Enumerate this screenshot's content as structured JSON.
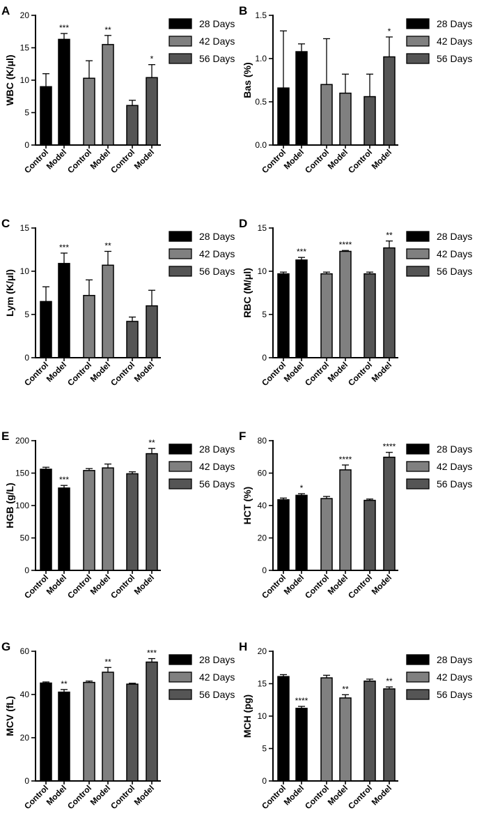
{
  "legend": {
    "items": [
      {
        "label": "28 Days",
        "color": "#000000"
      },
      {
        "label": "42 Days",
        "color": "#808080"
      },
      {
        "label": "56 Days",
        "color": "#555555"
      }
    ]
  },
  "chart_data": [
    {
      "panel": "A",
      "type": "bar",
      "ylabel": "WBC (K/μl)",
      "ylim": [
        0,
        20
      ],
      "yticks": [
        0,
        5,
        10,
        15,
        20
      ],
      "ytick_labels": [
        "0",
        "5",
        "10",
        "15",
        "20"
      ],
      "categories": [
        "Control",
        "Model",
        "Control",
        "Model",
        "Control",
        "Model"
      ],
      "groups": [
        "28 Days",
        "28 Days",
        "42 Days",
        "42 Days",
        "56 Days",
        "56 Days"
      ],
      "values": [
        9.0,
        16.3,
        10.3,
        15.5,
        6.1,
        10.4
      ],
      "errors": [
        2.0,
        0.9,
        2.7,
        1.4,
        0.8,
        2.0
      ],
      "annotations": [
        "",
        "***",
        "",
        "**",
        "",
        "*"
      ]
    },
    {
      "panel": "B",
      "type": "bar",
      "ylabel": "Bas (%)",
      "ylim": [
        0,
        1.5
      ],
      "yticks": [
        0,
        0.5,
        1.0,
        1.5
      ],
      "ytick_labels": [
        "0.0",
        "0.5",
        "1.0",
        "1.5"
      ],
      "categories": [
        "Control",
        "Model",
        "Control",
        "Model",
        "Control",
        "Model"
      ],
      "groups": [
        "28 Days",
        "28 Days",
        "42 Days",
        "42 Days",
        "56 Days",
        "56 Days"
      ],
      "values": [
        0.66,
        1.08,
        0.7,
        0.6,
        0.56,
        1.02
      ],
      "errors": [
        0.66,
        0.09,
        0.53,
        0.22,
        0.26,
        0.23
      ],
      "annotations": [
        "",
        "",
        "",
        "",
        "",
        "*"
      ]
    },
    {
      "panel": "C",
      "type": "bar",
      "ylabel": "Lym (K/μl)",
      "ylim": [
        0,
        15
      ],
      "yticks": [
        0,
        5,
        10,
        15
      ],
      "ytick_labels": [
        "0",
        "5",
        "10",
        "15"
      ],
      "categories": [
        "Control",
        "Model",
        "Control",
        "Model",
        "Control",
        "Model"
      ],
      "groups": [
        "28 Days",
        "28 Days",
        "42 Days",
        "42 Days",
        "56 Days",
        "56 Days"
      ],
      "values": [
        6.5,
        10.9,
        7.2,
        10.7,
        4.2,
        6.0
      ],
      "errors": [
        1.7,
        1.2,
        1.8,
        1.6,
        0.5,
        1.8
      ],
      "annotations": [
        "",
        "***",
        "",
        "**",
        "",
        ""
      ]
    },
    {
      "panel": "D",
      "type": "bar",
      "ylabel": "RBC (M/μl)",
      "ylim": [
        0,
        15
      ],
      "yticks": [
        0,
        5,
        10,
        15
      ],
      "ytick_labels": [
        "0",
        "5",
        "10",
        "15"
      ],
      "categories": [
        "Control",
        "Model",
        "Control",
        "Model",
        "Control",
        "Model"
      ],
      "groups": [
        "28 Days",
        "28 Days",
        "42 Days",
        "42 Days",
        "56 Days",
        "56 Days"
      ],
      "values": [
        9.7,
        11.3,
        9.7,
        12.3,
        9.7,
        12.7
      ],
      "errors": [
        0.2,
        0.3,
        0.2,
        0.1,
        0.2,
        0.8
      ],
      "annotations": [
        "",
        "***",
        "",
        "****",
        "",
        "**"
      ]
    },
    {
      "panel": "E",
      "type": "bar",
      "ylabel": "HGB (g/L)",
      "ylim": [
        0,
        200
      ],
      "yticks": [
        0,
        50,
        100,
        150,
        200
      ],
      "ytick_labels": [
        "0",
        "50",
        "100",
        "150",
        "200"
      ],
      "categories": [
        "Control",
        "Model",
        "Control",
        "Model",
        "Control",
        "Model"
      ],
      "groups": [
        "28 Days",
        "28 Days",
        "42 Days",
        "42 Days",
        "56 Days",
        "56 Days"
      ],
      "values": [
        156,
        127,
        154,
        158,
        149,
        180
      ],
      "errors": [
        3,
        4,
        3,
        6,
        3,
        8
      ],
      "annotations": [
        "",
        "***",
        "",
        "",
        "",
        "**"
      ]
    },
    {
      "panel": "F",
      "type": "bar",
      "ylabel": "HCT (%)",
      "ylim": [
        0,
        80
      ],
      "yticks": [
        0,
        20,
        40,
        60,
        80
      ],
      "ytick_labels": [
        "0",
        "20",
        "40",
        "60",
        "80"
      ],
      "categories": [
        "Control",
        "Model",
        "Control",
        "Model",
        "Control",
        "Model"
      ],
      "groups": [
        "28 Days",
        "28 Days",
        "42 Days",
        "42 Days",
        "56 Days",
        "56 Days"
      ],
      "values": [
        43.6,
        46.3,
        44.3,
        62.0,
        43.2,
        69.8
      ],
      "errors": [
        1.0,
        1.0,
        1.3,
        3.0,
        0.8,
        3.0
      ],
      "annotations": [
        "",
        "*",
        "",
        "****",
        "",
        "****"
      ]
    },
    {
      "panel": "G",
      "type": "bar",
      "ylabel": "MCV (fL)",
      "ylim": [
        0,
        60
      ],
      "yticks": [
        0,
        20,
        40,
        60
      ],
      "ytick_labels": [
        "0",
        "20",
        "40",
        "60"
      ],
      "categories": [
        "Control",
        "Model",
        "Control",
        "Model",
        "Control",
        "Model"
      ],
      "groups": [
        "28 Days",
        "28 Days",
        "42 Days",
        "42 Days",
        "56 Days",
        "56 Days"
      ],
      "values": [
        45.3,
        41.1,
        45.6,
        50.3,
        44.8,
        55.0
      ],
      "errors": [
        0.5,
        1.2,
        0.6,
        2.2,
        0.4,
        1.6
      ],
      "annotations": [
        "",
        "**",
        "",
        "**",
        "",
        "***"
      ]
    },
    {
      "panel": "H",
      "type": "bar",
      "ylabel": "MCH (pg)",
      "ylim": [
        0,
        20
      ],
      "yticks": [
        0,
        5,
        10,
        15,
        20
      ],
      "ytick_labels": [
        "0",
        "5",
        "10",
        "15",
        "20"
      ],
      "categories": [
        "Control",
        "Model",
        "Control",
        "Model",
        "Control",
        "Model"
      ],
      "groups": [
        "28 Days",
        "28 Days",
        "42 Days",
        "42 Days",
        "56 Days",
        "56 Days"
      ],
      "values": [
        16.1,
        11.2,
        15.9,
        12.8,
        15.4,
        14.2
      ],
      "errors": [
        0.3,
        0.3,
        0.4,
        0.5,
        0.3,
        0.3
      ],
      "annotations": [
        "",
        "****",
        "",
        "**",
        "",
        "**"
      ]
    }
  ]
}
